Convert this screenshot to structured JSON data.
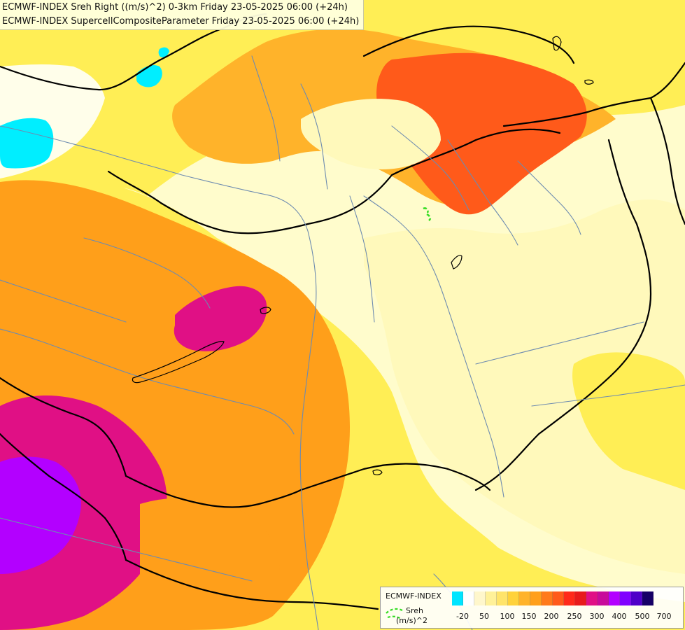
{
  "title": {
    "line1": "ECMWF-INDEX Sreh Right ((m/s)^2) 0-3km Friday 23-05-2025 06:00 (+24h)",
    "line2": "ECMWF-INDEX SupercellCompositeParameter Friday 23-05-2025 06:00 (+24h)"
  },
  "map": {
    "colors": {
      "background": "#fffccc",
      "pale_yellow": "#fff9bb",
      "yellow": "#ffee55",
      "yellow_orange": "#ffd23a",
      "orange": "#ff9f1a",
      "red_orange": "#ff5a1a",
      "red": "#ff2a1a",
      "magenta": "#e01085",
      "purple": "#b300ff",
      "cyan": "#00eeff",
      "border_color": "#000000",
      "river_color": "#6d8bb0"
    }
  },
  "legend": {
    "source": "ECMWF-INDEX",
    "parameter": "Sreh",
    "unit": "(m/s)^2",
    "labels": [
      "-20",
      "50",
      "100",
      "150",
      "200",
      "250",
      "300",
      "400",
      "500",
      "700"
    ],
    "colors": [
      "#00e5ff",
      "#ffffff",
      "#fff7cc",
      "#fff199",
      "#ffe46a",
      "#ffd23a",
      "#ffb32a",
      "#ff9f1a",
      "#ff7a1a",
      "#ff5a1a",
      "#ff2a1a",
      "#e81b1b",
      "#e01085",
      "#c80b9b",
      "#b300ff",
      "#8000ff",
      "#4f00c8",
      "#160066"
    ]
  }
}
